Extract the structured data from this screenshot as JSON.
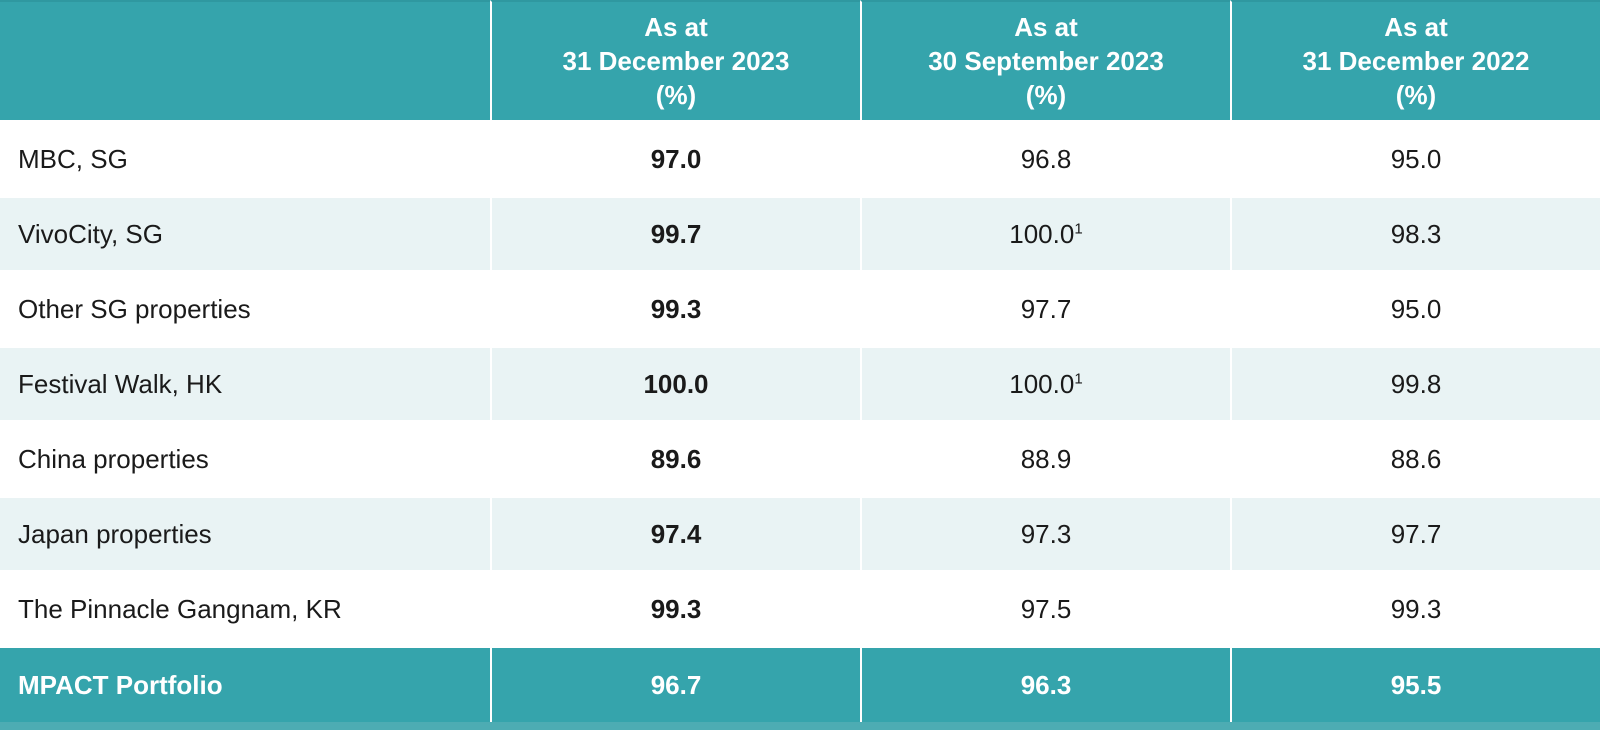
{
  "chart_data": {
    "type": "table",
    "header_col_labels": [
      [
        "As at",
        "31 December 2023",
        "(%)"
      ],
      [
        "As at",
        "30 September 2023",
        "(%)"
      ],
      [
        "As at",
        "31 December 2022",
        "(%)"
      ]
    ],
    "rows": [
      {
        "name": "MBC, SG",
        "values": [
          {
            "v": "97.0",
            "sup": ""
          },
          {
            "v": "96.8",
            "sup": ""
          },
          {
            "v": "95.0",
            "sup": ""
          }
        ]
      },
      {
        "name": "VivoCity, SG",
        "values": [
          {
            "v": "99.7",
            "sup": ""
          },
          {
            "v": "100.0",
            "sup": "1"
          },
          {
            "v": "98.3",
            "sup": ""
          }
        ]
      },
      {
        "name": "Other SG properties",
        "values": [
          {
            "v": "99.3",
            "sup": ""
          },
          {
            "v": "97.7",
            "sup": ""
          },
          {
            "v": "95.0",
            "sup": ""
          }
        ]
      },
      {
        "name": "Festival Walk, HK",
        "values": [
          {
            "v": "100.0",
            "sup": ""
          },
          {
            "v": "100.0",
            "sup": "1"
          },
          {
            "v": "99.8",
            "sup": ""
          }
        ]
      },
      {
        "name": "China properties",
        "values": [
          {
            "v": "89.6",
            "sup": ""
          },
          {
            "v": "88.9",
            "sup": ""
          },
          {
            "v": "88.6",
            "sup": ""
          }
        ]
      },
      {
        "name": "Japan properties",
        "values": [
          {
            "v": "97.4",
            "sup": ""
          },
          {
            "v": "97.3",
            "sup": ""
          },
          {
            "v": "97.7",
            "sup": ""
          }
        ]
      },
      {
        "name": "The Pinnacle Gangnam, KR",
        "values": [
          {
            "v": "99.3",
            "sup": ""
          },
          {
            "v": "97.5",
            "sup": ""
          },
          {
            "v": "99.3",
            "sup": ""
          }
        ]
      }
    ],
    "footer": {
      "name": "MPACT Portfolio",
      "values": [
        {
          "v": "96.7"
        },
        {
          "v": "96.3"
        },
        {
          "v": "95.5"
        }
      ]
    },
    "colors": {
      "header_teal": "#35A4AC",
      "alt_row": "#E9F3F4",
      "bottom_strip": "#4DACB3",
      "header_text": "#FFFFFF",
      "body_text": "#1A1A1A"
    }
  }
}
